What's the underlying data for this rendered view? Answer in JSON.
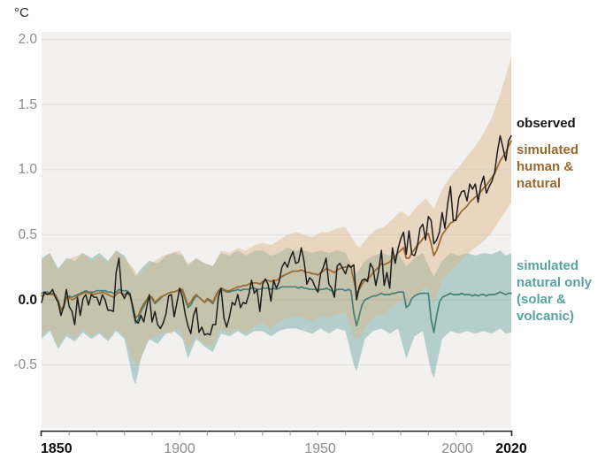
{
  "header": {
    "unit_label": "°C"
  },
  "axes": {
    "y_tick_labels": [
      "2.0",
      "1.5",
      "1.0",
      "0.5",
      "0.0",
      "-0.5"
    ],
    "x_tick_labels": [
      "1850",
      "1900",
      "1950",
      "2000",
      "2020"
    ]
  },
  "legend": {
    "observed_label": "observed",
    "human_natural_lines": [
      "simulated",
      "human &",
      "natural"
    ],
    "natural_only_lines": [
      "simulated",
      "natural only",
      "(solar &",
      "volcanic)"
    ],
    "colors": {
      "observed": "#161616",
      "human_natural": "#97692d",
      "natural_only": "#56a39d"
    }
  },
  "chart_data": {
    "type": "line",
    "title": "°C",
    "xlabel": "",
    "ylabel": "°C",
    "x_range": [
      1850,
      2020
    ],
    "x_tick_interval": 10,
    "x_labeled_ticks": [
      1850,
      1900,
      1950,
      2000,
      2020
    ],
    "y_ticks": [
      2.0,
      1.5,
      1.0,
      0.5,
      0.0,
      -0.5
    ],
    "ylim": [
      -0.98,
      2.06
    ],
    "grid": "horizontal",
    "legend_position": "right",
    "plot_bg": "#f2f1ef",
    "grid_color": "#e2e1df",
    "zero_line_color": "#c9c8c5",
    "years_start": 1850,
    "series": [
      {
        "name": "simulated natural only (solar & volcanic)",
        "color": "#44807a",
        "width": 1.7,
        "values": [
          0.05,
          0.06,
          0.06,
          0.05,
          0.05,
          0.04,
          0.0,
          -0.07,
          -0.05,
          0.02,
          0.03,
          0.02,
          0.03,
          0.04,
          0.05,
          0.06,
          0.07,
          0.06,
          0.06,
          0.06,
          0.07,
          0.07,
          0.07,
          0.07,
          0.06,
          0.06,
          0.05,
          0.06,
          0.08,
          0.07,
          0.07,
          0.07,
          0.05,
          -0.08,
          -0.18,
          -0.15,
          -0.09,
          -0.05,
          -0.01,
          0.02,
          0.01,
          -0.03,
          -0.01,
          0.01,
          0.03,
          0.04,
          0.05,
          0.06,
          0.06,
          0.07,
          0.07,
          0.07,
          0.0,
          -0.06,
          -0.04,
          0.0,
          0.03,
          0.02,
          0.0,
          -0.02,
          0.0,
          -0.01,
          -0.03,
          0.02,
          0.06,
          0.08,
          0.07,
          0.06,
          0.06,
          0.07,
          0.07,
          0.08,
          0.07,
          0.08,
          0.08,
          0.08,
          0.09,
          0.09,
          0.08,
          0.08,
          0.09,
          0.09,
          0.09,
          0.08,
          0.09,
          0.08,
          0.09,
          0.1,
          0.1,
          0.1,
          0.1,
          0.1,
          0.1,
          0.09,
          0.1,
          0.09,
          0.09,
          0.08,
          0.08,
          0.08,
          0.07,
          0.08,
          0.08,
          0.09,
          0.08,
          0.07,
          0.06,
          0.08,
          0.08,
          0.08,
          0.07,
          0.08,
          0.07,
          -0.1,
          -0.2,
          -0.12,
          -0.04,
          0.0,
          0.01,
          0.02,
          0.03,
          0.03,
          0.04,
          0.05,
          0.04,
          0.04,
          0.04,
          0.05,
          0.05,
          0.06,
          0.06,
          0.06,
          -0.06,
          -0.04,
          0.01,
          0.03,
          0.04,
          0.05,
          0.05,
          0.05,
          0.05,
          -0.15,
          -0.25,
          -0.12,
          -0.02,
          0.02,
          0.03,
          0.04,
          0.05,
          0.04,
          0.04,
          0.04,
          0.05,
          0.04,
          0.04,
          0.04,
          0.03,
          0.04,
          0.03,
          0.04,
          0.04,
          0.03,
          0.04,
          0.04,
          0.04,
          0.05,
          0.06,
          0.05,
          0.04,
          0.05,
          0.05
        ]
      },
      {
        "name": "simulated human & natural",
        "color": "#9d6b30",
        "width": 1.8,
        "values": [
          0.03,
          0.04,
          0.05,
          0.04,
          0.04,
          0.03,
          -0.01,
          -0.08,
          -0.06,
          0.01,
          0.02,
          0.0,
          0.01,
          0.03,
          0.04,
          0.05,
          0.06,
          0.05,
          0.05,
          0.04,
          0.05,
          0.05,
          0.06,
          0.05,
          0.04,
          0.03,
          0.02,
          0.04,
          0.06,
          0.05,
          0.04,
          0.05,
          0.03,
          -0.05,
          -0.14,
          -0.12,
          -0.07,
          -0.03,
          0.0,
          0.03,
          0.02,
          -0.02,
          0.0,
          0.02,
          0.03,
          0.04,
          0.05,
          0.06,
          0.06,
          0.07,
          0.08,
          0.08,
          0.02,
          -0.04,
          -0.02,
          0.02,
          0.04,
          0.02,
          0.0,
          -0.02,
          0.01,
          0.0,
          -0.02,
          0.03,
          0.07,
          0.09,
          0.08,
          0.07,
          0.07,
          0.08,
          0.09,
          0.1,
          0.1,
          0.11,
          0.11,
          0.12,
          0.13,
          0.13,
          0.13,
          0.12,
          0.14,
          0.15,
          0.15,
          0.14,
          0.15,
          0.15,
          0.16,
          0.18,
          0.19,
          0.2,
          0.21,
          0.22,
          0.22,
          0.22,
          0.23,
          0.22,
          0.21,
          0.21,
          0.2,
          0.2,
          0.19,
          0.21,
          0.22,
          0.24,
          0.23,
          0.22,
          0.21,
          0.23,
          0.24,
          0.25,
          0.25,
          0.26,
          0.25,
          0.15,
          0.05,
          0.08,
          0.12,
          0.15,
          0.16,
          0.18,
          0.21,
          0.23,
          0.25,
          0.28,
          0.27,
          0.28,
          0.29,
          0.32,
          0.33,
          0.36,
          0.38,
          0.4,
          0.32,
          0.32,
          0.36,
          0.39,
          0.42,
          0.44,
          0.47,
          0.49,
          0.51,
          0.43,
          0.34,
          0.38,
          0.44,
          0.5,
          0.53,
          0.56,
          0.59,
          0.6,
          0.62,
          0.65,
          0.68,
          0.7,
          0.72,
          0.75,
          0.77,
          0.79,
          0.8,
          0.83,
          0.86,
          0.88,
          0.91,
          0.94,
          0.97,
          1.02,
          1.07,
          1.1,
          1.13,
          1.18,
          1.22
        ]
      },
      {
        "name": "observed",
        "color": "#1c1c1c",
        "width": 1.5,
        "values": [
          -0.02,
          0.06,
          0.04,
          0.05,
          0.08,
          0.02,
          -0.02,
          -0.12,
          -0.05,
          0.08,
          -0.05,
          -0.09,
          -0.19,
          0.02,
          -0.12,
          0.01,
          0.04,
          -0.04,
          0.04,
          0.02,
          0.02,
          -0.04,
          0.04,
          0.0,
          -0.08,
          -0.08,
          -0.09,
          0.21,
          0.32,
          0.05,
          0.01,
          0.06,
          0.04,
          -0.05,
          -0.16,
          -0.18,
          -0.12,
          -0.17,
          -0.06,
          0.04,
          -0.17,
          -0.09,
          -0.19,
          -0.22,
          -0.18,
          -0.11,
          0.03,
          0.04,
          -0.13,
          -0.02,
          0.09,
          0.02,
          -0.11,
          -0.2,
          -0.26,
          -0.12,
          -0.06,
          -0.25,
          -0.21,
          -0.27,
          -0.26,
          -0.27,
          -0.19,
          -0.19,
          0.02,
          0.09,
          -0.14,
          -0.21,
          -0.13,
          -0.02,
          -0.04,
          0.04,
          -0.06,
          -0.02,
          -0.03,
          0.04,
          0.15,
          0.05,
          0.08,
          -0.09,
          0.12,
          0.16,
          0.12,
          -0.01,
          0.15,
          0.09,
          0.14,
          0.25,
          0.29,
          0.25,
          0.32,
          0.37,
          0.28,
          0.29,
          0.4,
          0.3,
          0.12,
          0.17,
          0.15,
          0.1,
          0.06,
          0.2,
          0.25,
          0.32,
          0.12,
          0.09,
          0.02,
          0.26,
          0.28,
          0.24,
          0.2,
          0.27,
          0.25,
          0.27,
          0.0,
          0.1,
          0.15,
          0.16,
          0.14,
          0.28,
          0.24,
          0.11,
          0.22,
          0.38,
          0.11,
          0.21,
          0.09,
          0.4,
          0.28,
          0.39,
          0.47,
          0.52,
          0.35,
          0.53,
          0.35,
          0.34,
          0.41,
          0.55,
          0.58,
          0.46,
          0.64,
          0.61,
          0.43,
          0.46,
          0.52,
          0.67,
          0.55,
          0.74,
          0.87,
          0.61,
          0.61,
          0.78,
          0.83,
          0.84,
          0.76,
          0.89,
          0.85,
          0.89,
          0.75,
          0.88,
          0.95,
          0.82,
          0.87,
          0.91,
          0.98,
          1.14,
          1.26,
          1.17,
          1.07,
          1.22,
          1.26
        ]
      }
    ],
    "bands": [
      {
        "name": "simulated natural only range",
        "fill": "rgba(104,165,159,0.45)",
        "points": [
          [
            1850,
            -0.3,
            0.32
          ],
          [
            1853,
            -0.24,
            0.36
          ],
          [
            1856,
            -0.38,
            0.24
          ],
          [
            1859,
            -0.28,
            0.32
          ],
          [
            1862,
            -0.32,
            0.3
          ],
          [
            1865,
            -0.25,
            0.36
          ],
          [
            1868,
            -0.3,
            0.32
          ],
          [
            1871,
            -0.26,
            0.36
          ],
          [
            1874,
            -0.32,
            0.3
          ],
          [
            1877,
            -0.24,
            0.38
          ],
          [
            1880,
            -0.3,
            0.34
          ],
          [
            1883,
            -0.6,
            0.22
          ],
          [
            1884,
            -0.65,
            0.18
          ],
          [
            1886,
            -0.45,
            0.24
          ],
          [
            1889,
            -0.3,
            0.3
          ],
          [
            1892,
            -0.34,
            0.28
          ],
          [
            1895,
            -0.26,
            0.34
          ],
          [
            1898,
            -0.24,
            0.36
          ],
          [
            1901,
            -0.3,
            0.34
          ],
          [
            1903,
            -0.45,
            0.26
          ],
          [
            1906,
            -0.3,
            0.32
          ],
          [
            1909,
            -0.36,
            0.28
          ],
          [
            1912,
            -0.4,
            0.26
          ],
          [
            1915,
            -0.26,
            0.36
          ],
          [
            1918,
            -0.28,
            0.34
          ],
          [
            1921,
            -0.24,
            0.38
          ],
          [
            1924,
            -0.28,
            0.34
          ],
          [
            1927,
            -0.24,
            0.38
          ],
          [
            1930,
            -0.24,
            0.38
          ],
          [
            1933,
            -0.28,
            0.34
          ],
          [
            1936,
            -0.24,
            0.36
          ],
          [
            1939,
            -0.22,
            0.4
          ],
          [
            1942,
            -0.22,
            0.38
          ],
          [
            1945,
            -0.24,
            0.38
          ],
          [
            1948,
            -0.26,
            0.36
          ],
          [
            1951,
            -0.22,
            0.38
          ],
          [
            1954,
            -0.26,
            0.36
          ],
          [
            1957,
            -0.22,
            0.38
          ],
          [
            1960,
            -0.24,
            0.36
          ],
          [
            1963,
            -0.5,
            0.24
          ],
          [
            1964,
            -0.55,
            0.2
          ],
          [
            1967,
            -0.3,
            0.3
          ],
          [
            1970,
            -0.24,
            0.34
          ],
          [
            1973,
            -0.22,
            0.36
          ],
          [
            1976,
            -0.26,
            0.34
          ],
          [
            1979,
            -0.22,
            0.36
          ],
          [
            1982,
            -0.45,
            0.26
          ],
          [
            1985,
            -0.28,
            0.32
          ],
          [
            1988,
            -0.24,
            0.36
          ],
          [
            1991,
            -0.55,
            0.22
          ],
          [
            1992,
            -0.6,
            0.18
          ],
          [
            1995,
            -0.3,
            0.3
          ],
          [
            1998,
            -0.24,
            0.36
          ],
          [
            2001,
            -0.26,
            0.34
          ],
          [
            2004,
            -0.24,
            0.36
          ],
          [
            2007,
            -0.26,
            0.34
          ],
          [
            2010,
            -0.24,
            0.36
          ],
          [
            2013,
            -0.26,
            0.35
          ],
          [
            2016,
            -0.22,
            0.38
          ],
          [
            2018,
            -0.26,
            0.34
          ],
          [
            2020,
            -0.25,
            0.36
          ]
        ]
      },
      {
        "name": "simulated human & natural range",
        "fill": "rgba(220,181,137,0.45)",
        "points": [
          [
            1850,
            -0.28,
            0.3
          ],
          [
            1853,
            -0.22,
            0.36
          ],
          [
            1856,
            -0.35,
            0.22
          ],
          [
            1859,
            -0.25,
            0.31
          ],
          [
            1862,
            -0.3,
            0.33
          ],
          [
            1865,
            -0.22,
            0.36
          ],
          [
            1868,
            -0.28,
            0.3
          ],
          [
            1871,
            -0.24,
            0.34
          ],
          [
            1874,
            -0.3,
            0.28
          ],
          [
            1877,
            -0.22,
            0.38
          ],
          [
            1880,
            -0.28,
            0.32
          ],
          [
            1883,
            -0.45,
            0.25
          ],
          [
            1885,
            -0.5,
            0.18
          ],
          [
            1888,
            -0.32,
            0.26
          ],
          [
            1891,
            -0.28,
            0.3
          ],
          [
            1894,
            -0.25,
            0.34
          ],
          [
            1897,
            -0.26,
            0.36
          ],
          [
            1900,
            -0.22,
            0.38
          ],
          [
            1903,
            -0.38,
            0.28
          ],
          [
            1906,
            -0.28,
            0.32
          ],
          [
            1909,
            -0.34,
            0.28
          ],
          [
            1912,
            -0.36,
            0.26
          ],
          [
            1915,
            -0.22,
            0.38
          ],
          [
            1918,
            -0.26,
            0.36
          ],
          [
            1921,
            -0.22,
            0.4
          ],
          [
            1924,
            -0.26,
            0.38
          ],
          [
            1927,
            -0.2,
            0.42
          ],
          [
            1930,
            -0.18,
            0.44
          ],
          [
            1933,
            -0.22,
            0.42
          ],
          [
            1936,
            -0.16,
            0.46
          ],
          [
            1939,
            -0.14,
            0.5
          ],
          [
            1942,
            -0.12,
            0.52
          ],
          [
            1945,
            -0.14,
            0.5
          ],
          [
            1948,
            -0.16,
            0.48
          ],
          [
            1951,
            -0.12,
            0.52
          ],
          [
            1954,
            -0.14,
            0.52
          ],
          [
            1957,
            -0.1,
            0.55
          ],
          [
            1960,
            -0.1,
            0.56
          ],
          [
            1963,
            -0.28,
            0.45
          ],
          [
            1965,
            -0.3,
            0.4
          ],
          [
            1968,
            -0.18,
            0.48
          ],
          [
            1971,
            -0.12,
            0.54
          ],
          [
            1974,
            -0.1,
            0.56
          ],
          [
            1977,
            -0.05,
            0.62
          ],
          [
            1980,
            0.0,
            0.68
          ],
          [
            1983,
            -0.05,
            0.64
          ],
          [
            1986,
            0.05,
            0.72
          ],
          [
            1989,
            0.1,
            0.78
          ],
          [
            1992,
            -0.02,
            0.7
          ],
          [
            1995,
            0.15,
            0.85
          ],
          [
            1998,
            0.22,
            0.95
          ],
          [
            2001,
            0.28,
            1.02
          ],
          [
            2004,
            0.35,
            1.1
          ],
          [
            2007,
            0.4,
            1.18
          ],
          [
            2010,
            0.45,
            1.28
          ],
          [
            2013,
            0.52,
            1.4
          ],
          [
            2016,
            0.62,
            1.58
          ],
          [
            2018,
            0.68,
            1.72
          ],
          [
            2020,
            0.75,
            1.87
          ]
        ]
      }
    ]
  }
}
